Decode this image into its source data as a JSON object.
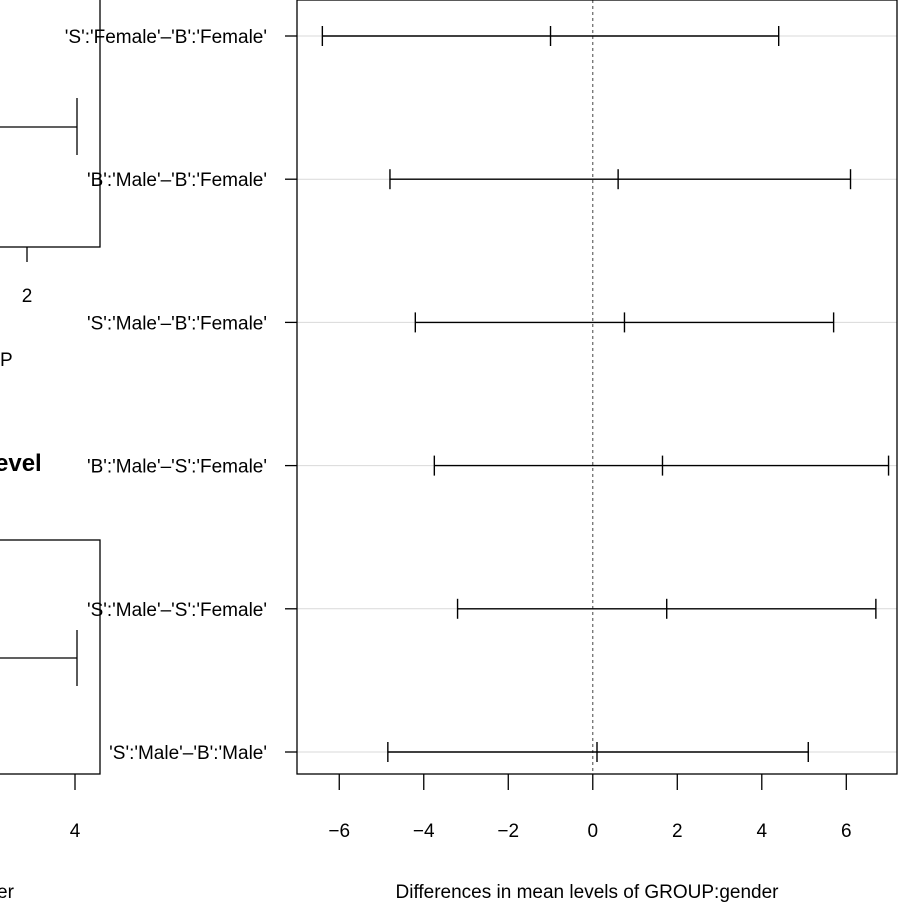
{
  "chart_data": [
    {
      "type": "errorbar",
      "xlabel": "Differences in mean levels of GROUP:gender",
      "ylabel": "",
      "xlim": [
        -7.0,
        7.2
      ],
      "xticks": [
        -6,
        -4,
        -2,
        0,
        2,
        4,
        6
      ],
      "xtick_labels": [
        "−6",
        "−4",
        "−2",
        "0",
        "2",
        "4",
        "6"
      ],
      "reference_line": 0,
      "grid": "horizontal",
      "comparisons": [
        {
          "label": "'S':'Female'–'B':'Female'",
          "lwr": -6.4,
          "diff": -1.0,
          "upr": 4.4
        },
        {
          "label": "'B':'Male'–'B':'Female'",
          "lwr": -4.8,
          "diff": 0.6,
          "upr": 6.1
        },
        {
          "label": "'S':'Male'–'B':'Female'",
          "lwr": -4.2,
          "diff": 0.75,
          "upr": 5.7
        },
        {
          "label": "'B':'Male'–'S':'Female'",
          "lwr": -3.75,
          "diff": 1.65,
          "upr": 7.0
        },
        {
          "label": "'S':'Male'–'S':'Female'",
          "lwr": -3.2,
          "diff": 1.75,
          "upr": 6.7
        },
        {
          "label": "'S':'Male'–'B':'Male'",
          "lwr": -4.85,
          "diff": 0.1,
          "upr": 5.1
        }
      ]
    },
    {
      "type": "errorbar",
      "partial": true,
      "title_fragment": "evel",
      "tick_top": "2",
      "xlabel_top_fragment": "P",
      "tick_bottom": "4",
      "xlabel_bottom_fragment": "er"
    }
  ]
}
